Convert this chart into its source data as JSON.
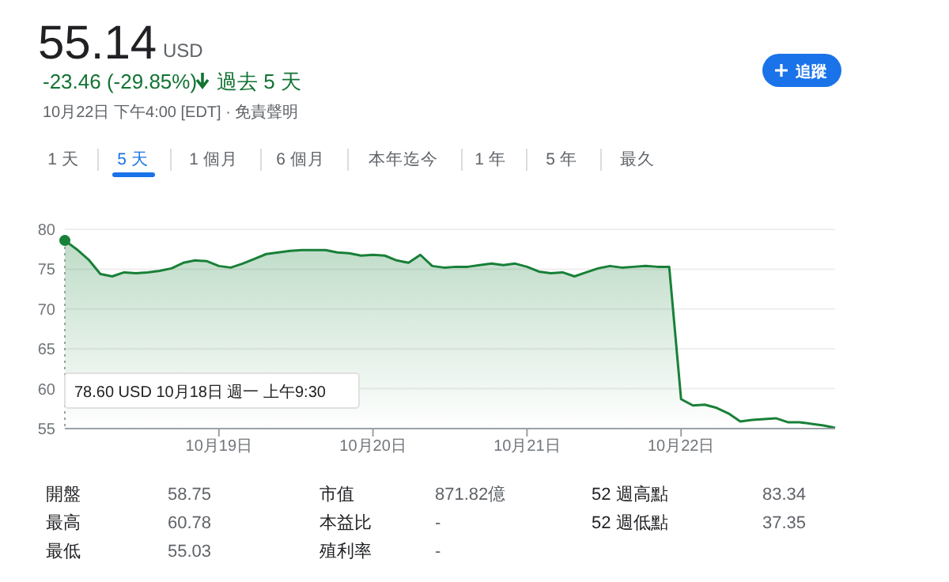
{
  "chart_data": {
    "type": "area",
    "title": "55.14",
    "subtitle": "USD",
    "categories": [
      null,
      null,
      null,
      null,
      null,
      null,
      null,
      null,
      null,
      null,
      null,
      null,
      null,
      "10月19日",
      null,
      null,
      null,
      null,
      null,
      null,
      null,
      null,
      null,
      null,
      null,
      null,
      "10月20日",
      null,
      null,
      null,
      null,
      null,
      null,
      null,
      null,
      null,
      null,
      null,
      null,
      "10月21日",
      null,
      null,
      null,
      null,
      null,
      null,
      null,
      null,
      null,
      null,
      null,
      null,
      "10月22日",
      null,
      null,
      null,
      null,
      null,
      null,
      null,
      null,
      null,
      null,
      null,
      null,
      null
    ],
    "series": [
      {
        "color": "#188038",
        "values": [
          78.6,
          77.5,
          76.2,
          74.4,
          74.1,
          74.6,
          74.5,
          74.6,
          74.8,
          75.1,
          75.8,
          76.1,
          76.0,
          75.4,
          75.2,
          75.7,
          76.3,
          76.9,
          77.1,
          77.3,
          77.4,
          77.4,
          77.4,
          77.1,
          77.0,
          76.7,
          76.8,
          76.7,
          76.1,
          75.8,
          76.8,
          75.4,
          75.2,
          75.3,
          75.3,
          75.5,
          75.7,
          75.5,
          75.7,
          75.3,
          74.7,
          74.5,
          74.6,
          74.1,
          74.6,
          75.1,
          75.4,
          75.2,
          75.3,
          75.4,
          75.3,
          75.3,
          58.7,
          57.9,
          58.0,
          57.6,
          56.9,
          55.9,
          56.1,
          56.2,
          56.3,
          55.8,
          55.8,
          55.6,
          55.4,
          55.1
        ]
      }
    ],
    "ylim": [
      55,
      80
    ],
    "yticks": [
      55,
      60,
      65,
      70,
      75,
      80
    ],
    "grid": "y",
    "marker": "none",
    "line_style": "solid",
    "annotations": [
      "-23.46 (-29.85%)",
      "過去 5 天",
      "10月22日 下午4:00 [EDT] · 免責聲明",
      "追蹤",
      "1 天",
      "5 天",
      "1 個月",
      "6 個月",
      "本年迄今",
      "1 年",
      "5 年",
      "最久",
      "開盤",
      "58.75",
      "最高",
      "60.78",
      "最低",
      "55.03",
      "市值",
      "871.82億",
      "本益比",
      "-",
      "殖利率",
      "-",
      "52 週高點",
      "83.34",
      "52 週低點",
      "37.35",
      "78.60 USD  10月18日 週一 上午9:30"
    ]
  }
}
